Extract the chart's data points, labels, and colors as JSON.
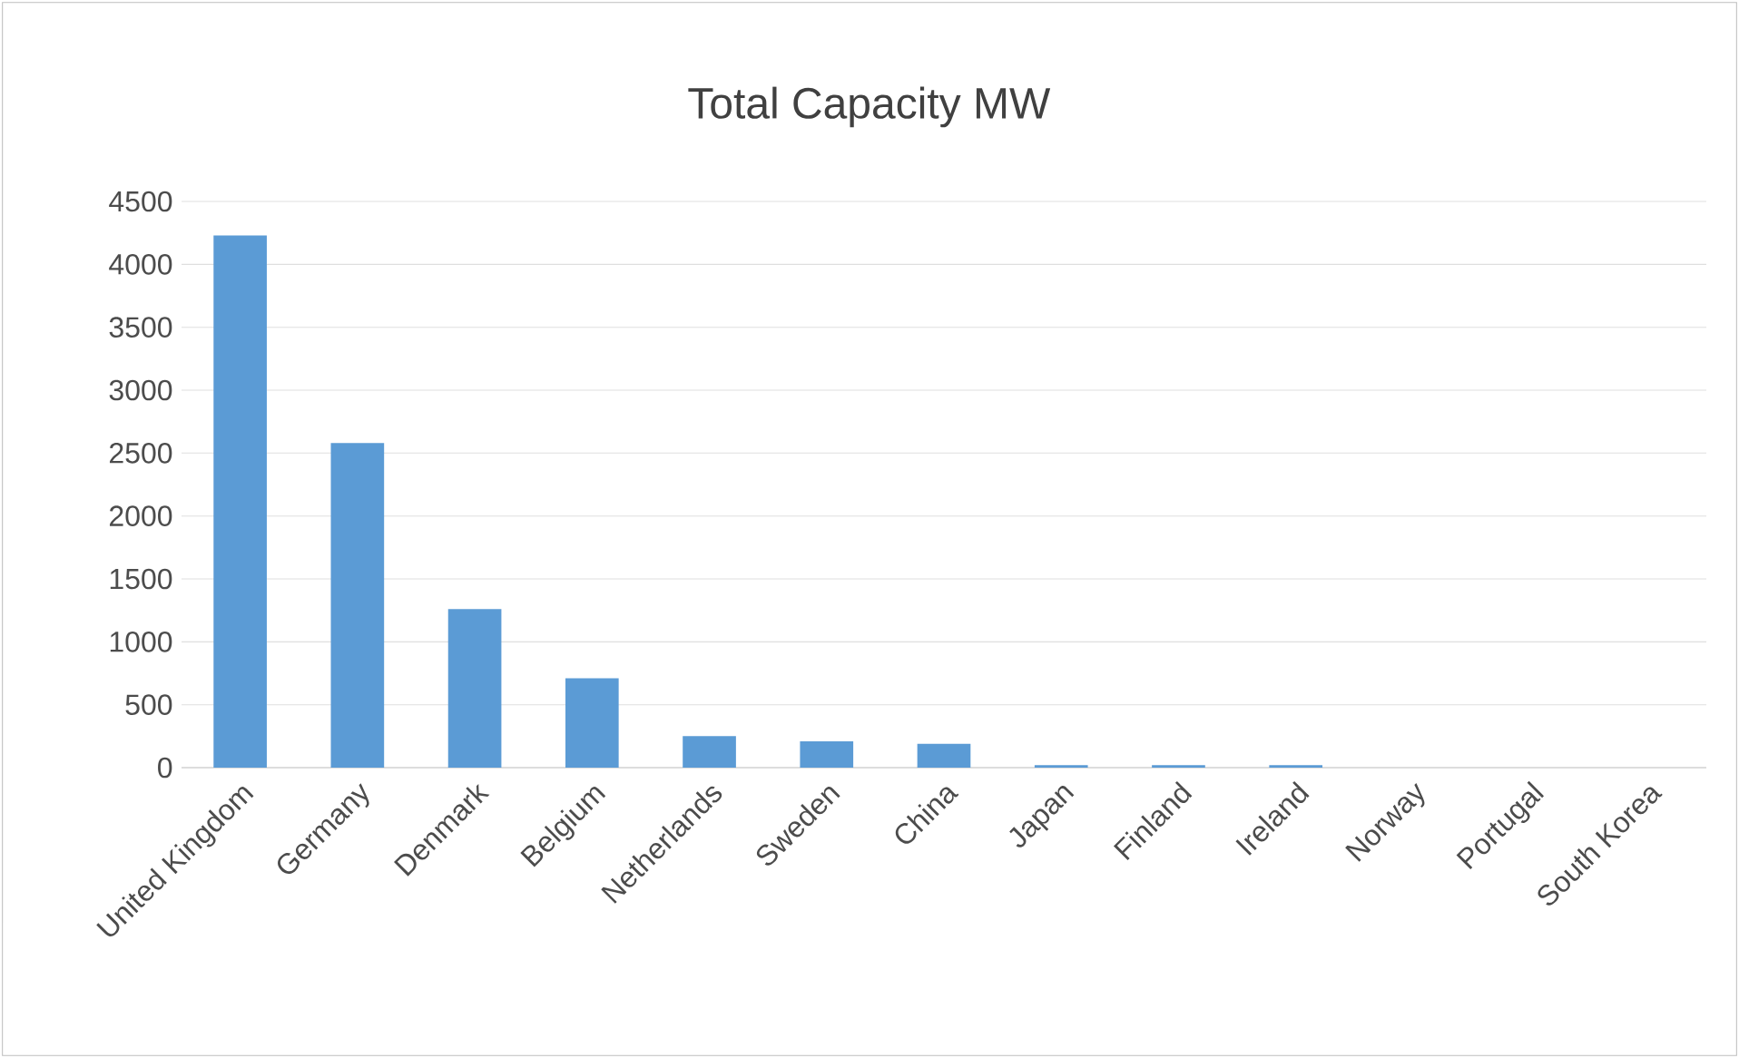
{
  "chart_data": {
    "type": "bar",
    "title": "Total Capacity MW",
    "categories": [
      "United Kingdom",
      "Germany",
      "Denmark",
      "Belgium",
      "Netherlands",
      "Sweden",
      "China",
      "Japan",
      "Finland",
      "Ireland",
      "Norway",
      "Portugal",
      "South Korea"
    ],
    "values": [
      4230,
      2580,
      1260,
      710,
      250,
      210,
      190,
      20,
      20,
      20,
      0,
      0,
      0
    ],
    "color": "#5b9bd5",
    "ylim": [
      0,
      4500
    ],
    "yticks": [
      0,
      500,
      1000,
      1500,
      2000,
      2500,
      3000,
      3500,
      4000,
      4500
    ],
    "grid": "y"
  }
}
